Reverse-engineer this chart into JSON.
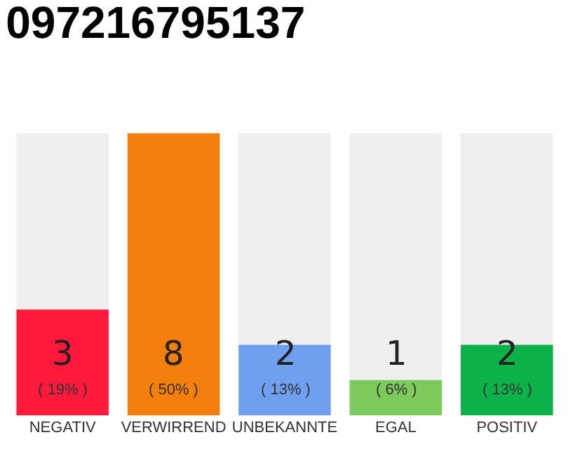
{
  "chart_data": {
    "type": "bar",
    "title": "097216795137",
    "categories": [
      "NEGATIV",
      "VERWIRREND",
      "UNBEKANNTE",
      "EGAL",
      "POSITIV"
    ],
    "values": [
      3,
      8,
      2,
      1,
      2
    ],
    "colors": [
      "#ff1a3c",
      "#f57f0d",
      "#6ea0ef",
      "#7cc95c",
      "#0bb24a"
    ],
    "data_labels": true,
    "annotations": [
      "( 19% )",
      "( 50% )",
      "( 13% )",
      "( 6% )",
      "( 13% )"
    ]
  }
}
